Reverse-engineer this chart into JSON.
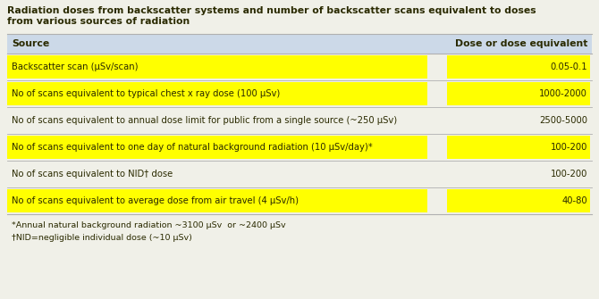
{
  "title_line1": "Radiation doses from backscatter systems and number of backscatter scans equivalent to doses",
  "title_line2": "from various sources of radiation",
  "header": [
    "Source",
    "Dose or dose equivalent"
  ],
  "rows": [
    {
      "source": "Backscatter scan (μSv/scan)",
      "dose": "0.05-0.1",
      "highlight": true
    },
    {
      "source": "No of scans equivalent to typical chest x ray dose (100 μSv)",
      "dose": "1000-2000",
      "highlight": true
    },
    {
      "source": "No of scans equivalent to annual dose limit for public from a single source (~250 μSv)",
      "dose": "2500-5000",
      "highlight": false
    },
    {
      "source": "No of scans equivalent to one day of natural background radiation (10 μSv/day)*",
      "dose": "100-200",
      "highlight": true
    },
    {
      "source": "No of scans equivalent to NID† dose",
      "dose": "100-200",
      "highlight": false
    },
    {
      "source": "No of scans equivalent to average dose from air travel (4 μSv/h)",
      "dose": "40-80",
      "highlight": true
    }
  ],
  "footnotes": [
    "*Annual natural background radiation ~3100 μSv  or ~2400 μSv",
    "†NID=negligible individual dose (~10 μSv)"
  ],
  "bg_color": "#f0f0e8",
  "header_bg": "#ccd9e8",
  "highlight_color": "#ffff00",
  "row_line_color": "#b0b0b0",
  "title_color": "#2a2a00",
  "text_color": "#2a2a00",
  "header_text_color": "#2a2a00",
  "title_fontsize": 7.8,
  "header_fontsize": 7.8,
  "row_fontsize": 7.2,
  "footnote_fontsize": 6.8
}
